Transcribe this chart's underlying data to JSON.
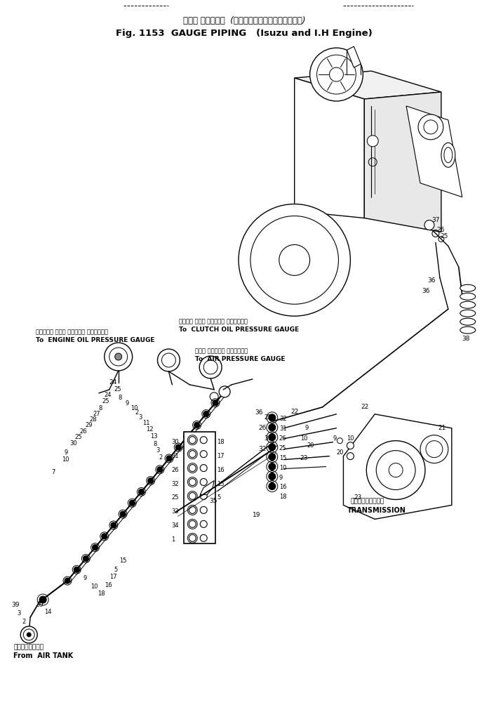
{
  "title_japanese": "ゲージ パイピング  (いずおよびインタエンジン)",
  "title_english": "Fig. 1153  GAUGE PIPING   (Isuzu and I.H Engine)",
  "bg_color": "#ffffff",
  "line_color": "#000000",
  "label_to_engine_oil_jp": "エンジン オイル プレッシャ ゲージへ",
  "label_to_engine_oil_en": "To  ENGINE OIL PRESSURE GAUGE",
  "label_to_clutch_oil_jp": "クラッチ オイル プレッシャ ゲージへ",
  "label_to_clutch_oil_en": "To  CLUTCH OIL PRESSURE GAUGE",
  "label_to_air_jp": "エアー プレッシャ ゲージへ",
  "label_to_air_en": "To  AIR PRESSURE GAUGE",
  "label_transmission_jp": "トランスミッション",
  "label_transmission_en": "TRANSMISSION",
  "label_from_air_jp": "エアータンクから",
  "label_from_air_en": "From  AIR TANK"
}
